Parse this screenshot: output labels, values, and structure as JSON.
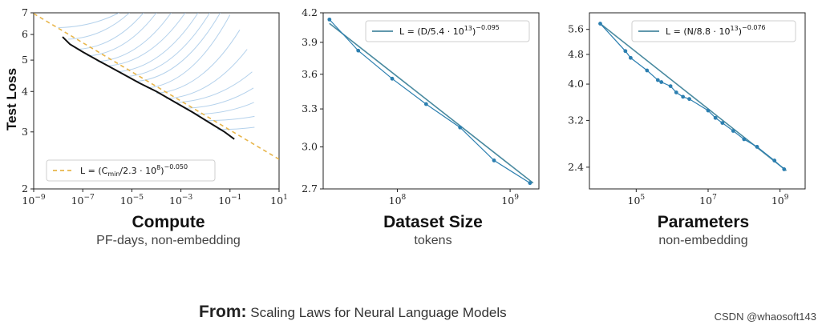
{
  "chart_data": [
    {
      "type": "line",
      "xscale": "log",
      "yscale": "log",
      "xlim": [
        1e-09,
        10
      ],
      "ylim": [
        2,
        7
      ],
      "xticks": [
        1e-09,
        1e-07,
        1e-05,
        0.001,
        0.1,
        10
      ],
      "xtick_labels": [
        [
          "10",
          "−9"
        ],
        [
          "10",
          "−7"
        ],
        [
          "10",
          "−5"
        ],
        [
          "10",
          "−3"
        ],
        [
          "10",
          "−1"
        ],
        [
          "10",
          "1"
        ]
      ],
      "yticks": [
        2,
        3,
        4,
        5,
        6,
        7
      ],
      "ytick_labels": [
        "2",
        "3",
        "4",
        "5",
        "6",
        "7"
      ],
      "ylabel": "Test Loss",
      "xlabel": "Compute",
      "xsublabel": "PF-days, non-embedding",
      "legend": {
        "position": "bottom-left",
        "color": "#e8b64c",
        "style": "dashed",
        "label": [
          "L = (C",
          "min",
          "/2.3 · 10",
          "8",
          ")",
          "−0.050"
        ]
      },
      "fit": {
        "x": [
          1e-09,
          10
        ],
        "y": [
          6.96,
          2.47
        ]
      },
      "frontier": {
        "x": [
          1.5e-08,
          3e-08,
          1e-07,
          5e-07,
          3e-06,
          2e-05,
          0.0001,
          0.0006,
          0.003,
          0.015,
          0.06,
          0.15
        ],
        "y": [
          5.9,
          5.6,
          5.3,
          4.95,
          4.6,
          4.25,
          4.0,
          3.7,
          3.45,
          3.2,
          3.0,
          2.85
        ]
      },
      "runs_color": "#9cc3e6",
      "runs": [
        {
          "x0": 1e-08,
          "y0": 6.3,
          "x1": 3e-06,
          "y1": 7.0
        },
        {
          "x0": 2.5e-08,
          "y0": 5.8,
          "x1": 8e-06,
          "y1": 7.0
        },
        {
          "x0": 6e-08,
          "y0": 5.4,
          "x1": 3e-05,
          "y1": 7.0
        },
        {
          "x0": 1.5e-07,
          "y0": 5.15,
          "x1": 0.0001,
          "y1": 7.0
        },
        {
          "x0": 4e-07,
          "y0": 4.95,
          "x1": 0.0004,
          "y1": 7.0
        },
        {
          "x0": 1e-06,
          "y0": 4.8,
          "x1": 0.0015,
          "y1": 7.0
        },
        {
          "x0": 2.5e-06,
          "y0": 4.6,
          "x1": 0.005,
          "y1": 7.0
        },
        {
          "x0": 6e-06,
          "y0": 4.45,
          "x1": 0.015,
          "y1": 7.0
        },
        {
          "x0": 1.5e-05,
          "y0": 4.3,
          "x1": 0.04,
          "y1": 7.0
        },
        {
          "x0": 4e-05,
          "y0": 4.1,
          "x1": 0.1,
          "y1": 6.9
        },
        {
          "x0": 0.0001,
          "y0": 3.95,
          "x1": 0.25,
          "y1": 6.2
        },
        {
          "x0": 0.00025,
          "y0": 3.8,
          "x1": 0.5,
          "y1": 5.4
        },
        {
          "x0": 0.0006,
          "y0": 3.7,
          "x1": 0.8,
          "y1": 4.6
        },
        {
          "x0": 0.0015,
          "y0": 3.55,
          "x1": 0.9,
          "y1": 4.1
        },
        {
          "x0": 0.004,
          "y0": 3.4,
          "x1": 0.95,
          "y1": 3.7
        },
        {
          "x0": 0.01,
          "y0": 3.25,
          "x1": 1.0,
          "y1": 3.35
        },
        {
          "x0": 0.03,
          "y0": 3.05,
          "x1": 1.0,
          "y1": 3.1
        }
      ]
    },
    {
      "type": "line",
      "xscale": "log",
      "yscale": "log",
      "xlim": [
        22000000.0,
        1800000000.0
      ],
      "ylim": [
        2.7,
        4.2
      ],
      "xticks": [
        100000000.0,
        1000000000.0
      ],
      "xtick_labels": [
        [
          "10",
          "8"
        ],
        [
          "10",
          "9"
        ]
      ],
      "yticks": [
        2.7,
        3.0,
        3.3,
        3.6,
        3.9,
        4.2
      ],
      "ytick_labels": [
        "2.7",
        "3.0",
        "3.3",
        "3.6",
        "3.9",
        "4.2"
      ],
      "xlabel": "Dataset Size",
      "xsublabel": "tokens",
      "legend": {
        "position": "top-right",
        "color": "#4a8aa0",
        "style": "solid",
        "label": [
          "L = (D/5.4 · 10",
          "13",
          ")",
          "−0.095"
        ]
      },
      "fit": {
        "x": [
          25000000.0,
          1600000000.0
        ],
        "y": [
          4.09,
          2.74
        ]
      },
      "points": {
        "x": [
          25000000.0,
          45000000.0,
          90000000.0,
          180000000.0,
          360000000.0,
          720000000.0,
          1500000000.0
        ],
        "y": [
          4.13,
          3.82,
          3.56,
          3.34,
          3.15,
          2.9,
          2.74
        ]
      }
    },
    {
      "type": "line",
      "xscale": "log",
      "yscale": "log",
      "xlim": [
        5000.0,
        5000000000.0
      ],
      "ylim": [
        2.1,
        6.2
      ],
      "xticks": [
        100000.0,
        10000000.0,
        1000000000.0
      ],
      "xtick_labels": [
        [
          "10",
          "5"
        ],
        [
          "10",
          "7"
        ],
        [
          "10",
          "9"
        ]
      ],
      "yticks": [
        2.4,
        3.2,
        4.0,
        4.8,
        5.6
      ],
      "ytick_labels": [
        "2.4",
        "3.2",
        "4.0",
        "4.8",
        "5.6"
      ],
      "xlabel": "Parameters",
      "xsublabel": "non-embedding",
      "legend": {
        "position": "top-right",
        "color": "#4a8aa0",
        "style": "solid",
        "label": [
          "L = (N/8.8 · 10",
          "13",
          ")",
          "−0.076"
        ]
      },
      "fit": {
        "x": [
          10000.0,
          1500000000.0
        ],
        "y": [
          5.8,
          2.35
        ]
      },
      "points": {
        "x": [
          10000.0,
          50000.0,
          70000.0,
          200000.0,
          400000.0,
          500000.0,
          900000.0,
          1300000.0,
          2000000.0,
          3000000.0,
          10000000.0,
          16000000.0,
          25000000.0,
          50000000.0,
          100000000.0,
          230000000.0,
          700000000.0,
          1300000000.0
        ],
        "y": [
          5.8,
          4.9,
          4.7,
          4.35,
          4.1,
          4.05,
          3.95,
          3.8,
          3.7,
          3.65,
          3.4,
          3.25,
          3.15,
          3.0,
          2.85,
          2.72,
          2.5,
          2.37
        ]
      }
    }
  ],
  "source": {
    "lead": "From:",
    "title": "Scaling Laws for Neural Language Models"
  },
  "watermark": "CSDN @whaosoft143"
}
